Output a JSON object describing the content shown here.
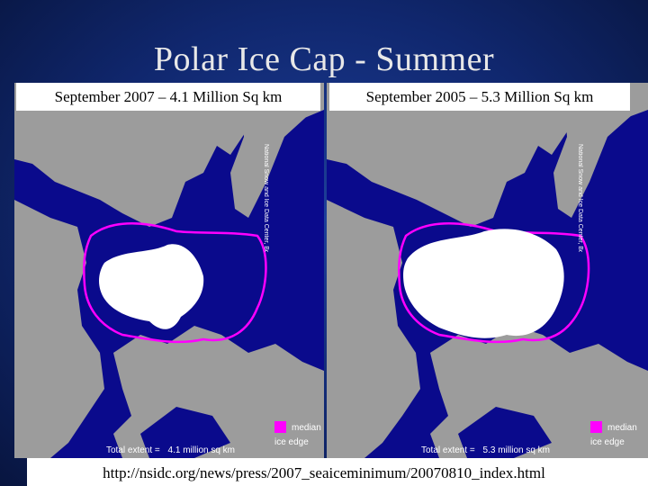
{
  "slide": {
    "title": "Polar Ice Cap - Summer",
    "url": "http://nsidc.org/news/press/2007_seaiceminimum/20070810_index.html"
  },
  "left_map": {
    "caption": "September 2007 – 4.1 Million Sq km",
    "credit": "National Snow and Ice Data Center, Boulder, CO",
    "legend_line1": "median",
    "legend_line2": "ice edge",
    "total_label": "Total extent =",
    "total_value": "4.1 million sq km"
  },
  "right_map": {
    "caption": "September 2005 – 5.3 Million Sq km",
    "credit": "National Snow and Ice Data Center, Boulder, CO",
    "legend_line1": "median",
    "legend_line2": "ice edge",
    "total_label": "Total extent =",
    "total_value": "5.3 million sq km"
  },
  "colors": {
    "ocean": "#0a0a8c",
    "land": "#9c9c9c",
    "ice": "#ffffff",
    "median_edge": "#ff00ff"
  }
}
